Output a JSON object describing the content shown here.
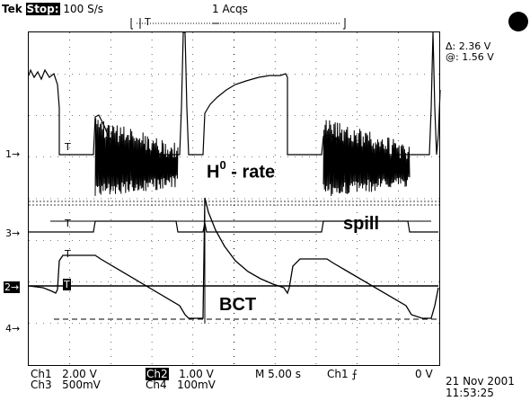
{
  "header": {
    "brand": "Tek",
    "state": "Stop:",
    "rate": "100 S/s",
    "acqs": "1 Acqs",
    "trigger_marker": "T"
  },
  "measurements": {
    "delta": "Δ: 2.36 V",
    "at": "@: 1.56 V"
  },
  "channel_markers": {
    "ch1": "1→",
    "ch3": "3→",
    "ch2": "2→",
    "ch4": "4→"
  },
  "annotations": {
    "h0_main": "H",
    "h0_sup": "0",
    "h0_rest": " - rate",
    "spill": "spill",
    "bct": "BCT"
  },
  "bottom": {
    "ch1_label": "Ch1",
    "ch1_scale": "2.00 V",
    "ch3_label": "Ch3",
    "ch3_scale": "500mV",
    "ch2_label": "Ch2",
    "ch2_scale": "1.00 V",
    "ch4_label": "Ch4",
    "ch4_scale": "100mV",
    "timebase": "M  5.00 s",
    "trig_source": "Ch1",
    "trig_slope": "⨍",
    "trig_level": "0 V",
    "date": "21 Nov 2001",
    "time": "11:53:25"
  },
  "icons": {
    "status": "record-dot-icon"
  },
  "traces": {
    "trig_t_labels": [
      "T",
      "T",
      "T",
      "T"
    ]
  }
}
